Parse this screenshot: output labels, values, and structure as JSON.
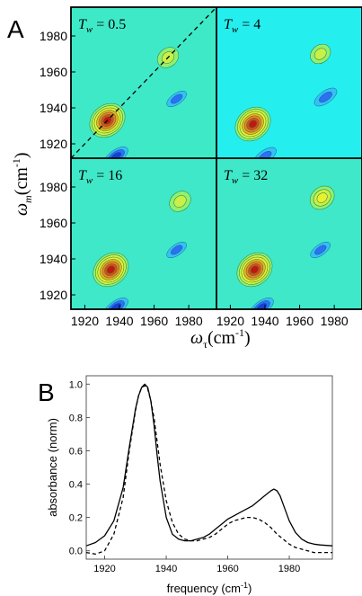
{
  "chart_data": [
    {
      "type": "heatmap",
      "panel_letter": "A",
      "xlabel_symbol": "ω",
      "xlabel_sub": "τ",
      "xlabel_unit": "(cm",
      "xlabel_exp": "-1",
      "xlabel_close": ")",
      "ylabel_symbol": "ω",
      "ylabel_sub": "m",
      "ylabel_unit": "(cm",
      "ylabel_exp": "-1",
      "ylabel_close": ")",
      "xlim": [
        1912,
        1996
      ],
      "ylim": [
        1912,
        1996
      ],
      "xticks": [
        "1920",
        "1940",
        "1960",
        "1980"
      ],
      "yticks": [
        "1920",
        "1940",
        "1960",
        "1980"
      ],
      "colormap": [
        "#0a10c0",
        "#2a72f0",
        "#35d2f4",
        "#34ecd6",
        "#90f070",
        "#e8f030",
        "#f08020",
        "#d02010",
        "#8a0a05"
      ],
      "background_color": "#35ecd0",
      "panels": [
        {
          "label_T": "T",
          "label_w": "w",
          "label_value": "= 0.5",
          "background_color": "#3ee9c8",
          "diagonal": "dashed",
          "features": [
            {
              "kind": "positive",
              "x": 1933,
              "y": 1933,
              "peak": 1.0
            },
            {
              "kind": "positive",
              "x": 1968,
              "y": 1968,
              "peak": 0.3
            },
            {
              "kind": "negative",
              "x": 1973,
              "y": 1945,
              "peak": -0.4
            },
            {
              "kind": "negative",
              "x": 1938,
              "y": 1913,
              "peak": -0.7
            }
          ]
        },
        {
          "label_T": "T",
          "label_w": "w",
          "label_value": "= 4",
          "background_color": "#25eeee",
          "diagonal": "none",
          "features": [
            {
              "kind": "positive",
              "x": 1933,
              "y": 1931,
              "peak": 1.0
            },
            {
              "kind": "positive",
              "x": 1972,
              "y": 1970,
              "peak": 0.25
            },
            {
              "kind": "negative",
              "x": 1975,
              "y": 1946,
              "peak": -0.6
            },
            {
              "kind": "negative",
              "x": 1940,
              "y": 1913,
              "peak": -0.6
            }
          ]
        },
        {
          "label_T": "T",
          "label_w": "w",
          "label_value": "= 16",
          "background_color": "#3fe8c8",
          "diagonal": "none",
          "features": [
            {
              "kind": "positive",
              "x": 1935,
              "y": 1934,
              "peak": 1.0
            },
            {
              "kind": "positive",
              "x": 1975,
              "y": 1972,
              "peak": 0.3
            },
            {
              "kind": "negative",
              "x": 1973,
              "y": 1945,
              "peak": -0.4
            },
            {
              "kind": "negative",
              "x": 1938,
              "y": 1913,
              "peak": -0.7
            }
          ]
        },
        {
          "label_T": "T",
          "label_w": "w",
          "label_value": "= 32",
          "background_color": "#3fe8c8",
          "diagonal": "none",
          "features": [
            {
              "kind": "positive",
              "x": 1934,
              "y": 1934,
              "peak": 1.0
            },
            {
              "kind": "positive",
              "x": 1973,
              "y": 1974,
              "peak": 0.45
            },
            {
              "kind": "negative",
              "x": 1972,
              "y": 1945,
              "peak": -0.4
            },
            {
              "kind": "negative",
              "x": 1938,
              "y": 1913,
              "peak": -0.7
            }
          ]
        }
      ]
    },
    {
      "type": "line",
      "panel_letter": "B",
      "xlabel": "frequency (cm",
      "xlabel_exp": "-1",
      "xlabel_close": ")",
      "ylabel": "absorbance (norm)",
      "xlim": [
        1914,
        1994
      ],
      "ylim": [
        -0.05,
        1.05
      ],
      "xticks": [
        1920,
        1940,
        1960,
        1980
      ],
      "yticks": [
        "0.0",
        "0.2",
        "0.4",
        "0.6",
        "0.8",
        "1.0"
      ],
      "ytick_values": [
        0.0,
        0.2,
        0.4,
        0.6,
        0.8,
        1.0
      ],
      "series": [
        {
          "style": "solid",
          "x": [
            1914,
            1917,
            1920,
            1923,
            1926,
            1928,
            1930,
            1931,
            1932,
            1933,
            1934,
            1935,
            1936,
            1937,
            1938,
            1940,
            1942,
            1944,
            1946,
            1948,
            1950,
            1952,
            1954,
            1956,
            1958,
            1960,
            1962,
            1964,
            1966,
            1968,
            1970,
            1972,
            1974,
            1975,
            1976,
            1977,
            1978,
            1980,
            1982,
            1984,
            1986,
            1988,
            1990,
            1994
          ],
          "y": [
            0.03,
            0.05,
            0.09,
            0.18,
            0.38,
            0.62,
            0.85,
            0.93,
            0.98,
            1.0,
            0.98,
            0.9,
            0.76,
            0.58,
            0.42,
            0.2,
            0.1,
            0.07,
            0.06,
            0.06,
            0.07,
            0.08,
            0.1,
            0.13,
            0.16,
            0.19,
            0.21,
            0.23,
            0.25,
            0.27,
            0.3,
            0.33,
            0.36,
            0.37,
            0.36,
            0.33,
            0.28,
            0.18,
            0.11,
            0.07,
            0.05,
            0.04,
            0.035,
            0.03
          ]
        },
        {
          "style": "dashed",
          "x": [
            1914,
            1917,
            1920,
            1923,
            1926,
            1928,
            1930,
            1931,
            1932,
            1933,
            1934,
            1935,
            1936,
            1937,
            1938,
            1940,
            1942,
            1944,
            1946,
            1948,
            1950,
            1952,
            1954,
            1956,
            1958,
            1960,
            1962,
            1964,
            1966,
            1968,
            1970,
            1972,
            1974,
            1976,
            1978,
            1980,
            1982,
            1984,
            1986,
            1988,
            1990,
            1994
          ],
          "y": [
            -0.01,
            -0.02,
            0.0,
            0.1,
            0.32,
            0.6,
            0.84,
            0.93,
            0.98,
            0.99,
            0.97,
            0.9,
            0.8,
            0.66,
            0.52,
            0.3,
            0.17,
            0.1,
            0.07,
            0.06,
            0.06,
            0.07,
            0.08,
            0.1,
            0.13,
            0.16,
            0.18,
            0.19,
            0.2,
            0.2,
            0.19,
            0.17,
            0.14,
            0.1,
            0.07,
            0.04,
            0.02,
            0.01,
            0.0,
            -0.01,
            -0.01,
            -0.01
          ]
        }
      ]
    }
  ]
}
